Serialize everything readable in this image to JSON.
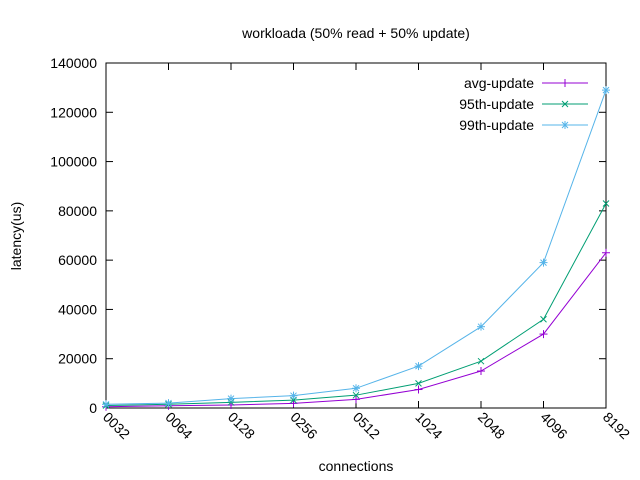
{
  "chart_data": {
    "type": "line",
    "title": "workloada (50% read + 50% update)",
    "xlabel": "connections",
    "ylabel": "latency(us)",
    "categories": [
      "0032",
      "0064",
      "0128",
      "0256",
      "0512",
      "1024",
      "2048",
      "4096",
      "8192"
    ],
    "ylim": [
      0,
      140000
    ],
    "yticks": [
      0,
      20000,
      40000,
      60000,
      80000,
      100000,
      120000,
      140000
    ],
    "grid": false,
    "legend_position": "top-right",
    "series": [
      {
        "name": "avg-update",
        "color": "#9400d3",
        "marker": "plus",
        "values": [
          500,
          900,
          1200,
          1900,
          3500,
          7500,
          15000,
          30000,
          63000
        ]
      },
      {
        "name": "95th-update",
        "color": "#009e73",
        "marker": "x",
        "values": [
          1000,
          1500,
          2300,
          3200,
          5200,
          10000,
          19000,
          36000,
          83000
        ]
      },
      {
        "name": "99th-update",
        "color": "#56b4e9",
        "marker": "star",
        "values": [
          1500,
          2000,
          3800,
          5000,
          8000,
          17000,
          33000,
          59000,
          129000
        ]
      }
    ]
  }
}
